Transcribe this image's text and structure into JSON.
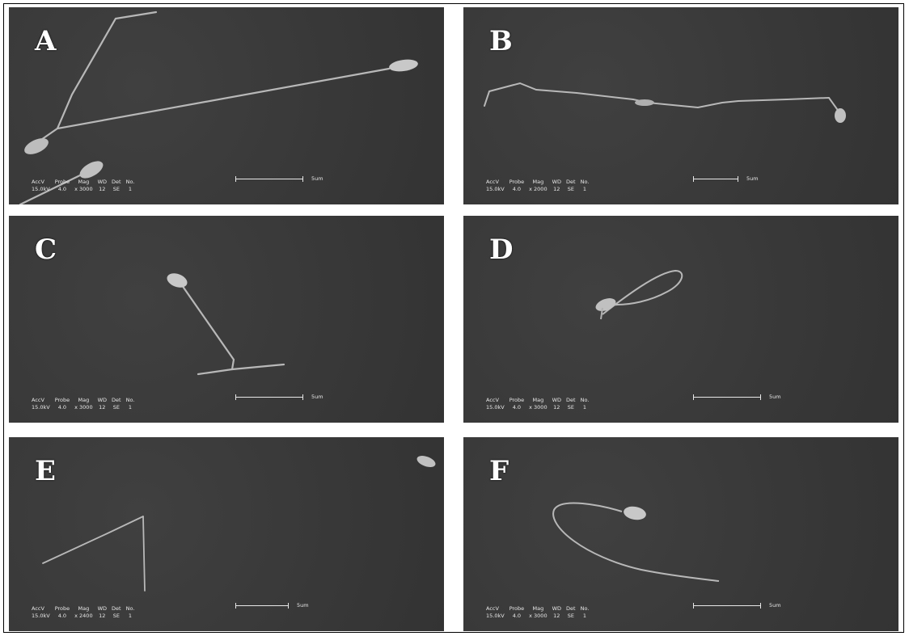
{
  "panels": [
    {
      "label": "A",
      "meta": {
        "h": [
          "AccV",
          "Probe",
          "Mag",
          "WD",
          "Det",
          "No."
        ],
        "v": [
          "15.0kV",
          "4.0",
          "x 3000",
          "12",
          "SE",
          "1"
        ]
      },
      "scale": "5um"
    },
    {
      "label": "B",
      "meta": {
        "h": [
          "AccV",
          "Probe",
          "Mag",
          "WD",
          "Det",
          "No."
        ],
        "v": [
          "15.0kV",
          "4.0",
          "x 2000",
          "12",
          "SE",
          "1"
        ]
      },
      "scale": "5um"
    },
    {
      "label": "C",
      "meta": {
        "h": [
          "AccV",
          "Probe",
          "Mag",
          "WD",
          "Det",
          "No."
        ],
        "v": [
          "15.0kV",
          "4.0",
          "x 3000",
          "12",
          "SE",
          "1"
        ]
      },
      "scale": "5um"
    },
    {
      "label": "D",
      "meta": {
        "h": [
          "AccV",
          "Probe",
          "Mag",
          "WD",
          "Det",
          "No."
        ],
        "v": [
          "15.0kV",
          "4.0",
          "x 3000",
          "12",
          "SE",
          "1"
        ]
      },
      "scale": "5um"
    },
    {
      "label": "E",
      "meta": {
        "h": [
          "AccV",
          "Probe",
          "Mag",
          "WD",
          "Det",
          "No."
        ],
        "v": [
          "15.0kV",
          "4.0",
          "x 2400",
          "12",
          "SE",
          "1"
        ]
      },
      "scale": "5um"
    },
    {
      "label": "F",
      "meta": {
        "h": [
          "AccV",
          "Probe",
          "Mag",
          "WD",
          "Det",
          "No."
        ],
        "v": [
          "15.0kV",
          "4.0",
          "x 3000",
          "12",
          "SE",
          "1"
        ]
      },
      "scale": "5um"
    }
  ]
}
